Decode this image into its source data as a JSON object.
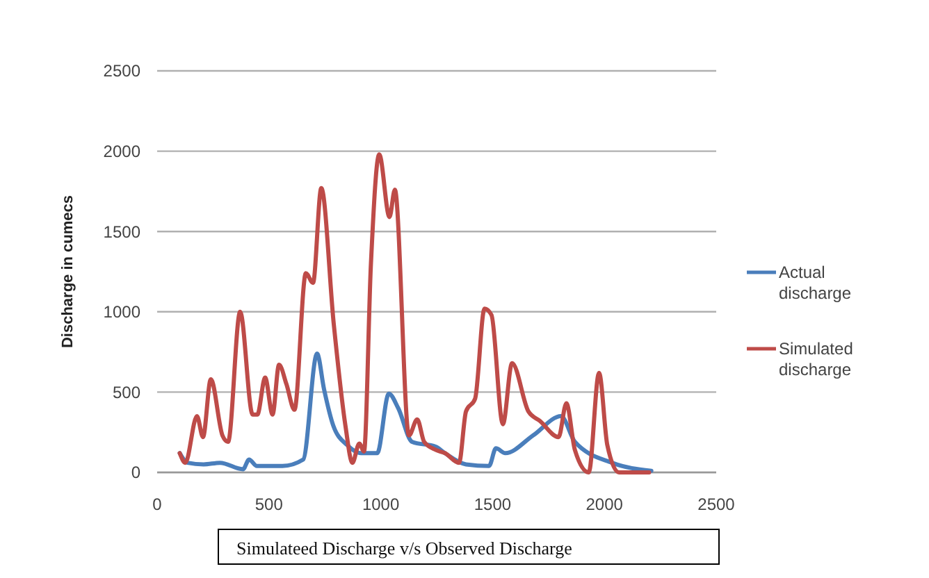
{
  "chart_data": {
    "type": "line",
    "title": "Simulateed Discharge v/s Observed Discharge",
    "ylabel": "Discharge in cumecs",
    "xlim": [
      0,
      2500
    ],
    "xticks": [
      0,
      500,
      1000,
      1500,
      2000,
      2500
    ],
    "ylim": [
      0,
      2500
    ],
    "yticks": [
      0,
      500,
      1000,
      1500,
      2000,
      2500
    ],
    "grid": "y",
    "legend": "right",
    "line_style": "solid",
    "series": [
      {
        "name": "Actual discharge",
        "color": "#4a7ebb",
        "x": [
          101,
          136,
          208,
          281,
          384,
          411,
          446,
          560,
          653,
          715,
          746,
          788,
          850,
          912,
          984,
          1036,
          1078,
          1140,
          1246,
          1287,
          1381,
          1484,
          1515,
          1557,
          1681,
          1806,
          1868,
          2034,
          2210
        ],
        "values": [
          120,
          60,
          50,
          60,
          20,
          80,
          40,
          40,
          80,
          740,
          520,
          290,
          170,
          120,
          120,
          490,
          400,
          190,
          160,
          120,
          50,
          40,
          150,
          120,
          230,
          350,
          190,
          60,
          10
        ]
      },
      {
        "name": "Simulated discharge",
        "color": "#be4b48",
        "x": [
          101,
          126,
          178,
          205,
          240,
          292,
          317,
          371,
          427,
          448,
          483,
          516,
          545,
          578,
          614,
          665,
          697,
          734,
          790,
          842,
          873,
          904,
          925,
          956,
          993,
          1039,
          1063,
          1126,
          1163,
          1194,
          1246,
          1287,
          1350,
          1381,
          1422,
          1464,
          1495,
          1546,
          1587,
          1660,
          1712,
          1795,
          1830,
          1868,
          1930,
          1976,
          2013,
          2065,
          2200
        ],
        "values": [
          120,
          60,
          350,
          220,
          580,
          230,
          190,
          1000,
          360,
          360,
          590,
          360,
          670,
          550,
          390,
          1240,
          1180,
          1770,
          920,
          290,
          60,
          180,
          130,
          1300,
          1980,
          1590,
          1760,
          230,
          330,
          190,
          140,
          120,
          60,
          380,
          460,
          1020,
          980,
          300,
          680,
          380,
          320,
          220,
          430,
          140,
          0,
          620,
          170,
          0,
          0
        ]
      }
    ]
  }
}
